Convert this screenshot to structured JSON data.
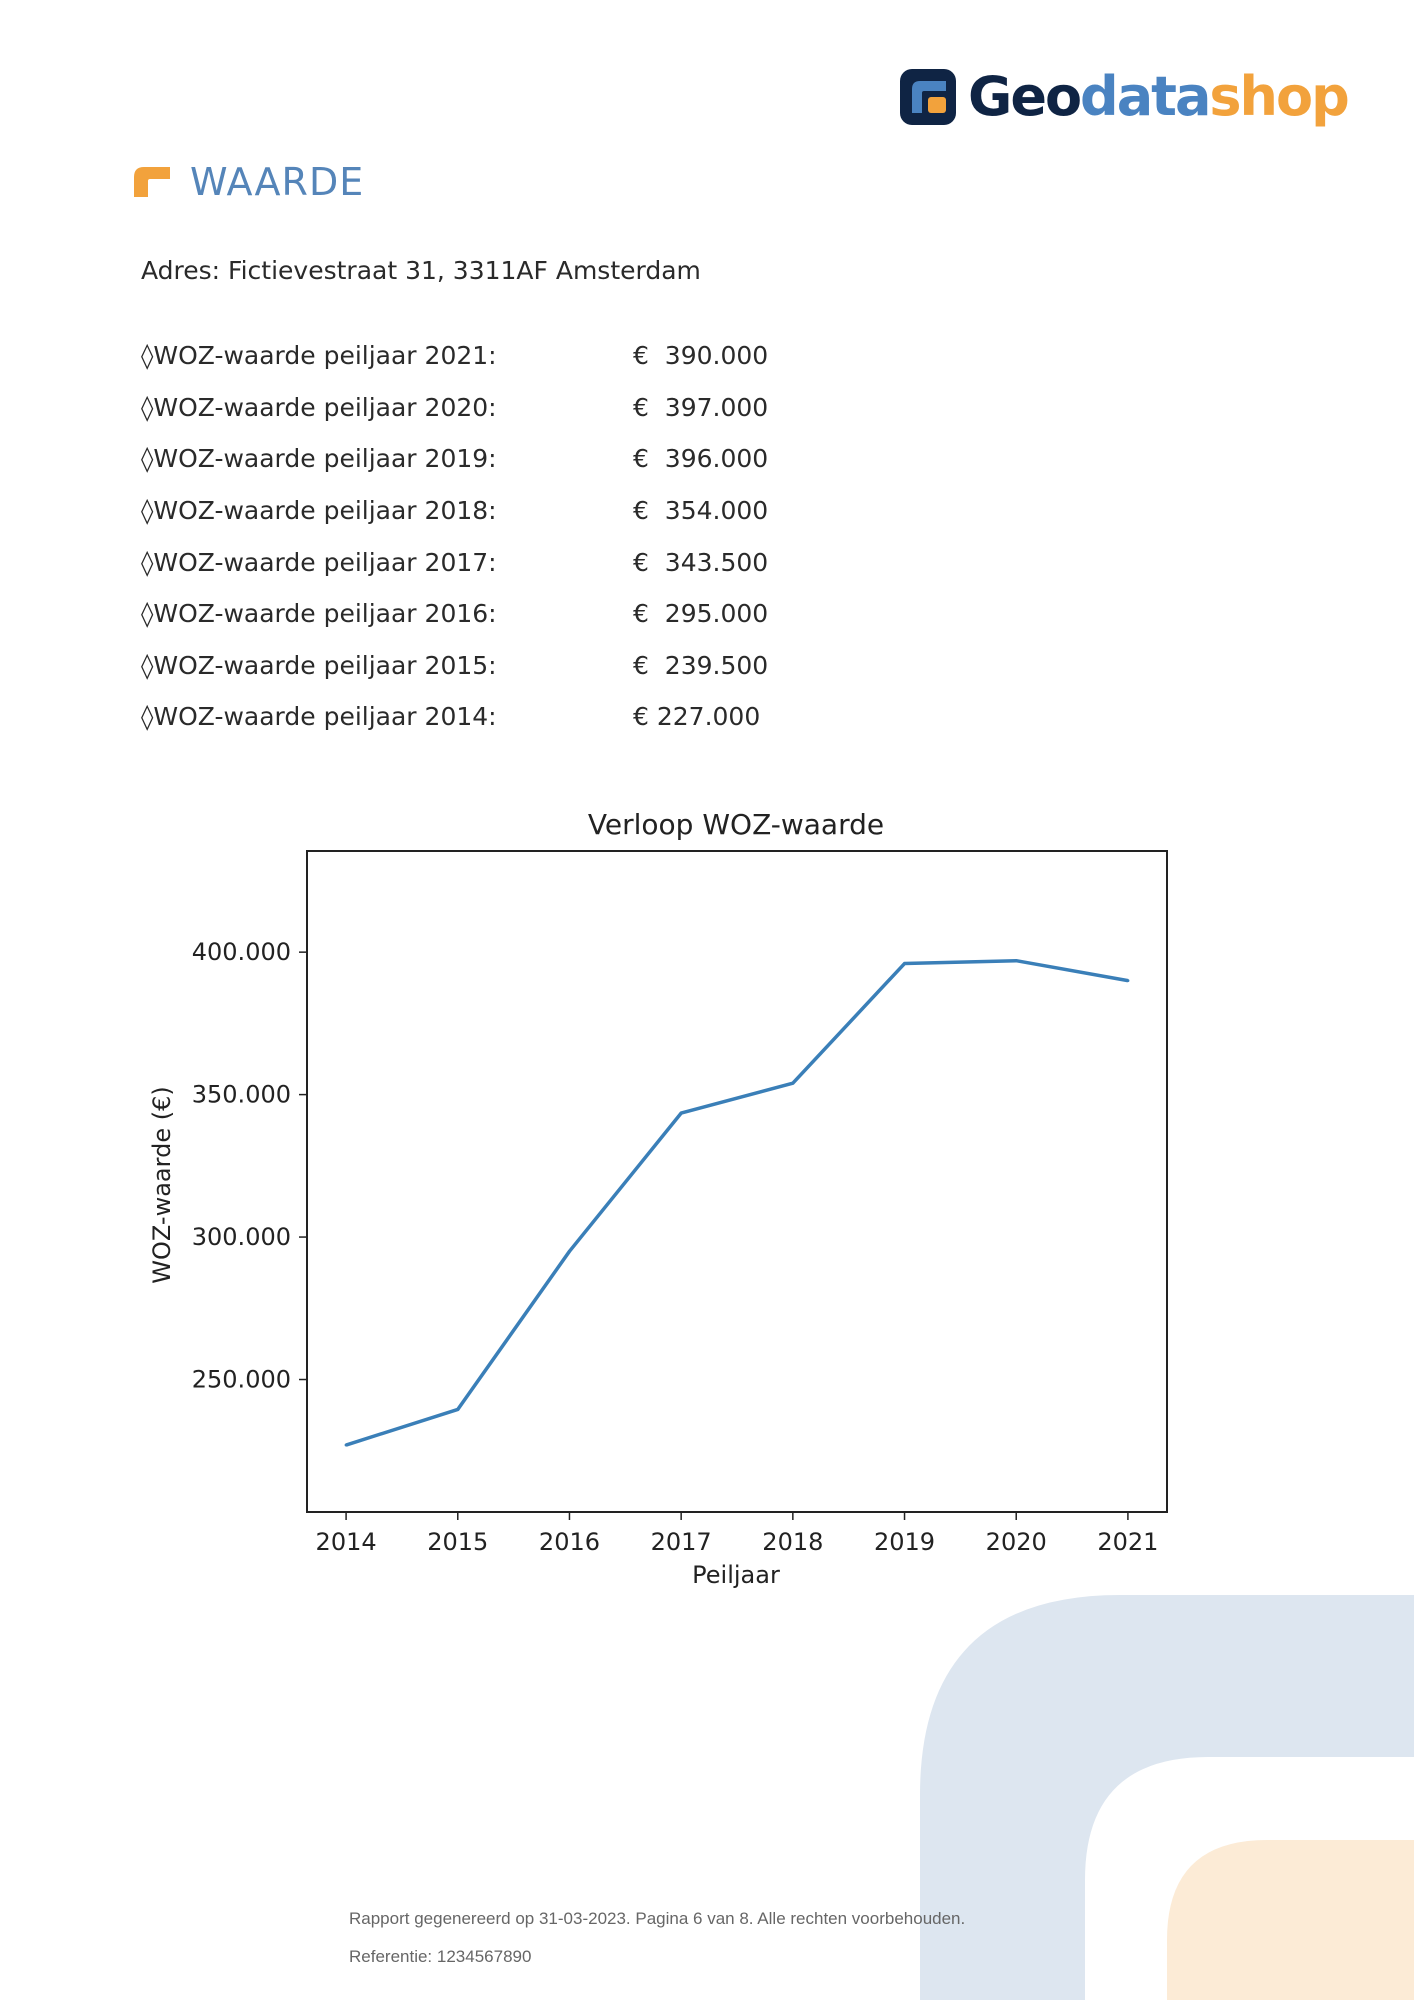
{
  "brand": {
    "logo_text_1": "Geo",
    "logo_text_2": "data",
    "logo_text_3": "shop",
    "colors": {
      "navy": "#0f2444",
      "blue": "#4a83c1",
      "orange": "#f2a23c"
    }
  },
  "section": {
    "title": "WAARDE",
    "icon": "orange-corner-icon"
  },
  "address": "Adres: Fictievestraat 31, 3311AF Amsterdam",
  "woz_rows": [
    {
      "label": "◊WOZ-waarde peiljaar 2021:",
      "value": "€  390.000"
    },
    {
      "label": "◊WOZ-waarde peiljaar 2020:",
      "value": "€  397.000"
    },
    {
      "label": "◊WOZ-waarde peiljaar 2019:",
      "value": "€  396.000"
    },
    {
      "label": "◊WOZ-waarde peiljaar 2018:",
      "value": "€  354.000"
    },
    {
      "label": "◊WOZ-waarde peiljaar 2017:",
      "value": "€  343.500"
    },
    {
      "label": "◊WOZ-waarde peiljaar 2016:",
      "value": "€  295.000"
    },
    {
      "label": "◊WOZ-waarde peiljaar 2015:",
      "value": "€  239.500"
    },
    {
      "label": "◊WOZ-waarde peiljaar 2014:",
      "value": "€ 227.000"
    }
  ],
  "chart_data": {
    "type": "line",
    "title": "Verloop WOZ-waarde",
    "xlabel": "Peiljaar",
    "ylabel": "WOZ-waarde (€)",
    "x": [
      2014,
      2015,
      2016,
      2017,
      2018,
      2019,
      2020,
      2021
    ],
    "series": [
      {
        "values": [
          227000,
          239500,
          295000,
          343500,
          354000,
          396000,
          397000,
          390000
        ],
        "color": "#3a7fb8"
      }
    ],
    "xlim": [
      2013.65,
      2021.35
    ],
    "ylim": [
      203500,
      435500
    ],
    "yticks": [
      250000,
      300000,
      350000,
      400000
    ],
    "ytick_labels": [
      "250.000",
      "300.000",
      "350.000",
      "400.000"
    ],
    "xtick_labels": [
      "2014",
      "2015",
      "2016",
      "2017",
      "2018",
      "2019",
      "2020",
      "2021"
    ],
    "grid": false,
    "legend": "none"
  },
  "footer": {
    "line1": "Rapport gegenereerd op 31-03-2023. Pagina 6 van 8. Alle rechten voorbehouden.",
    "line2": "Referentie: 1234567890"
  }
}
